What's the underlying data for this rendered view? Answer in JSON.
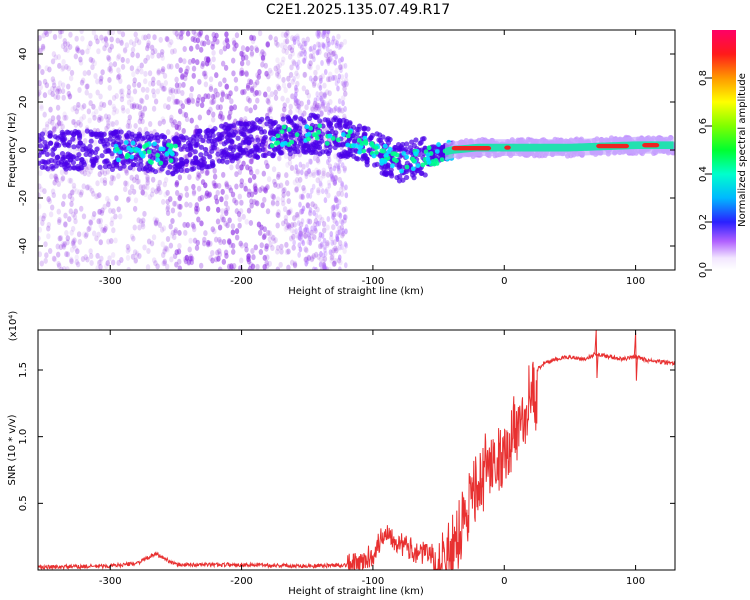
{
  "title": "C2E1.2025.135.07.49.R17",
  "chart_data": [
    {
      "type": "heatmap",
      "xlabel": "Height of straight line (km)",
      "ylabel": "Frequency (Hz)",
      "xlim": [
        -355,
        130
      ],
      "ylim": [
        -50,
        50
      ],
      "x_ticks": [
        -300,
        -200,
        -100,
        0,
        100
      ],
      "x_tick_labels": [
        "-300",
        "-200",
        "-100",
        "0",
        "100"
      ],
      "y_ticks": [
        -40,
        -20,
        0,
        20,
        40
      ],
      "y_tick_labels": [
        "-40",
        "-20",
        "0",
        "20",
        "40"
      ],
      "colorbar": {
        "label": "Normalized spectral amplitude",
        "range": [
          0,
          1
        ],
        "ticks": [
          0.0,
          0.2,
          0.4,
          0.6,
          0.8
        ],
        "tick_labels": [
          "0.0",
          "0.2",
          "0.4",
          "0.6",
          "0.8"
        ]
      },
      "ridge": {
        "x": [
          -355,
          -300,
          -250,
          -200,
          -150,
          -120,
          -100,
          -80,
          -60,
          -40,
          -20,
          0,
          50,
          100,
          130
        ],
        "y": [
          0,
          0,
          -2,
          4,
          7,
          5,
          0,
          -5,
          -3,
          0,
          1,
          1,
          1,
          2,
          2
        ]
      },
      "peak_segments": [
        [
          -40,
          -10
        ],
        [
          0,
          5
        ],
        [
          70,
          95
        ],
        [
          105,
          118
        ]
      ]
    },
    {
      "type": "line",
      "xlabel": "Height of straight line (km)",
      "ylabel": "SNR (10 * v/v)",
      "multiplier": "(x10⁴)",
      "xlim": [
        -355,
        130
      ],
      "ylim": [
        0,
        1.8
      ],
      "x_ticks": [
        -300,
        -200,
        -100,
        0,
        100
      ],
      "x_tick_labels": [
        "-300",
        "-200",
        "-100",
        "0",
        "100"
      ],
      "y_ticks": [
        0.5,
        1.0,
        1.5
      ],
      "y_tick_labels": [
        "0.5",
        "1.0",
        "1.5"
      ],
      "series": [
        {
          "name": "SNR",
          "color": "#e83030",
          "x": [
            -355,
            -300,
            -280,
            -265,
            -250,
            -200,
            -150,
            -110,
            -100,
            -90,
            -80,
            -70,
            -60,
            -50,
            -40,
            -30,
            -20,
            -10,
            0,
            10,
            20,
            30,
            40,
            50,
            60,
            70,
            80,
            90,
            100,
            110,
            120,
            130
          ],
          "y": [
            0.02,
            0.03,
            0.05,
            0.12,
            0.04,
            0.04,
            0.03,
            0.04,
            0.12,
            0.3,
            0.2,
            0.15,
            0.12,
            0.12,
            0.3,
            0.6,
            0.8,
            1.0,
            1.05,
            1.25,
            1.45,
            1.55,
            1.58,
            1.6,
            1.58,
            1.62,
            1.6,
            1.58,
            1.6,
            1.57,
            1.56,
            1.55
          ]
        }
      ],
      "spikes": [
        {
          "x": 70,
          "y": 1.8
        },
        {
          "x": 100,
          "y": 1.78
        }
      ]
    }
  ]
}
